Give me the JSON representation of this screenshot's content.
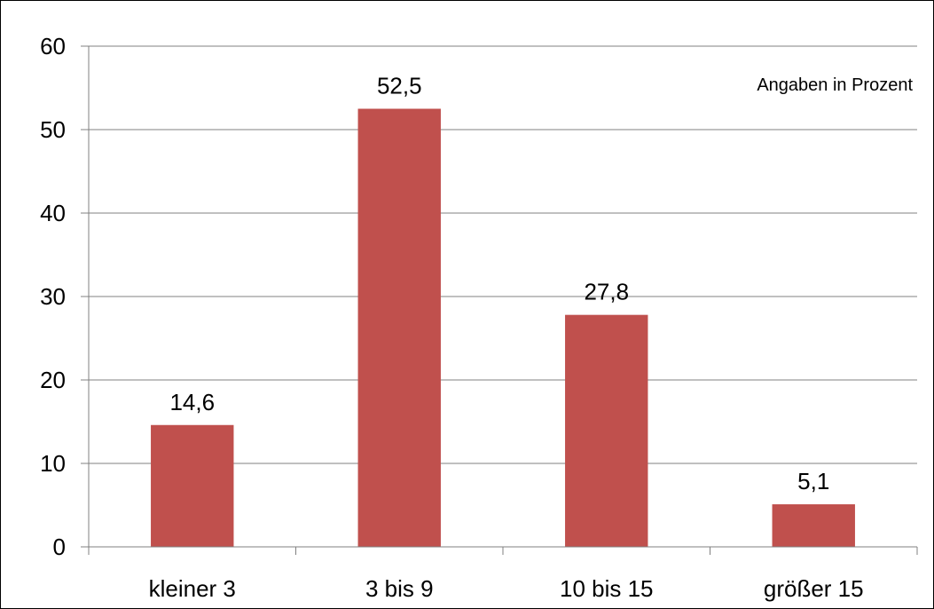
{
  "chart_data": {
    "type": "bar",
    "categories": [
      "kleiner 3",
      "3 bis 9",
      "10 bis 15",
      "größer 15"
    ],
    "values": [
      14.6,
      52.5,
      27.8,
      5.1
    ],
    "value_labels": [
      "14,6",
      "52,5",
      "27,8",
      "5,1"
    ],
    "title": "",
    "xlabel": "",
    "ylabel": "",
    "annotation": "Angaben in Prozent",
    "ylim": [
      0,
      60
    ],
    "yticks": [
      0,
      10,
      20,
      30,
      40,
      50,
      60
    ],
    "ytick_labels": [
      "0",
      "10",
      "20",
      "30",
      "40",
      "50",
      "60"
    ],
    "grid": true,
    "legend": "none",
    "bar_color": "#C0504D",
    "grid_color": "#808080"
  }
}
